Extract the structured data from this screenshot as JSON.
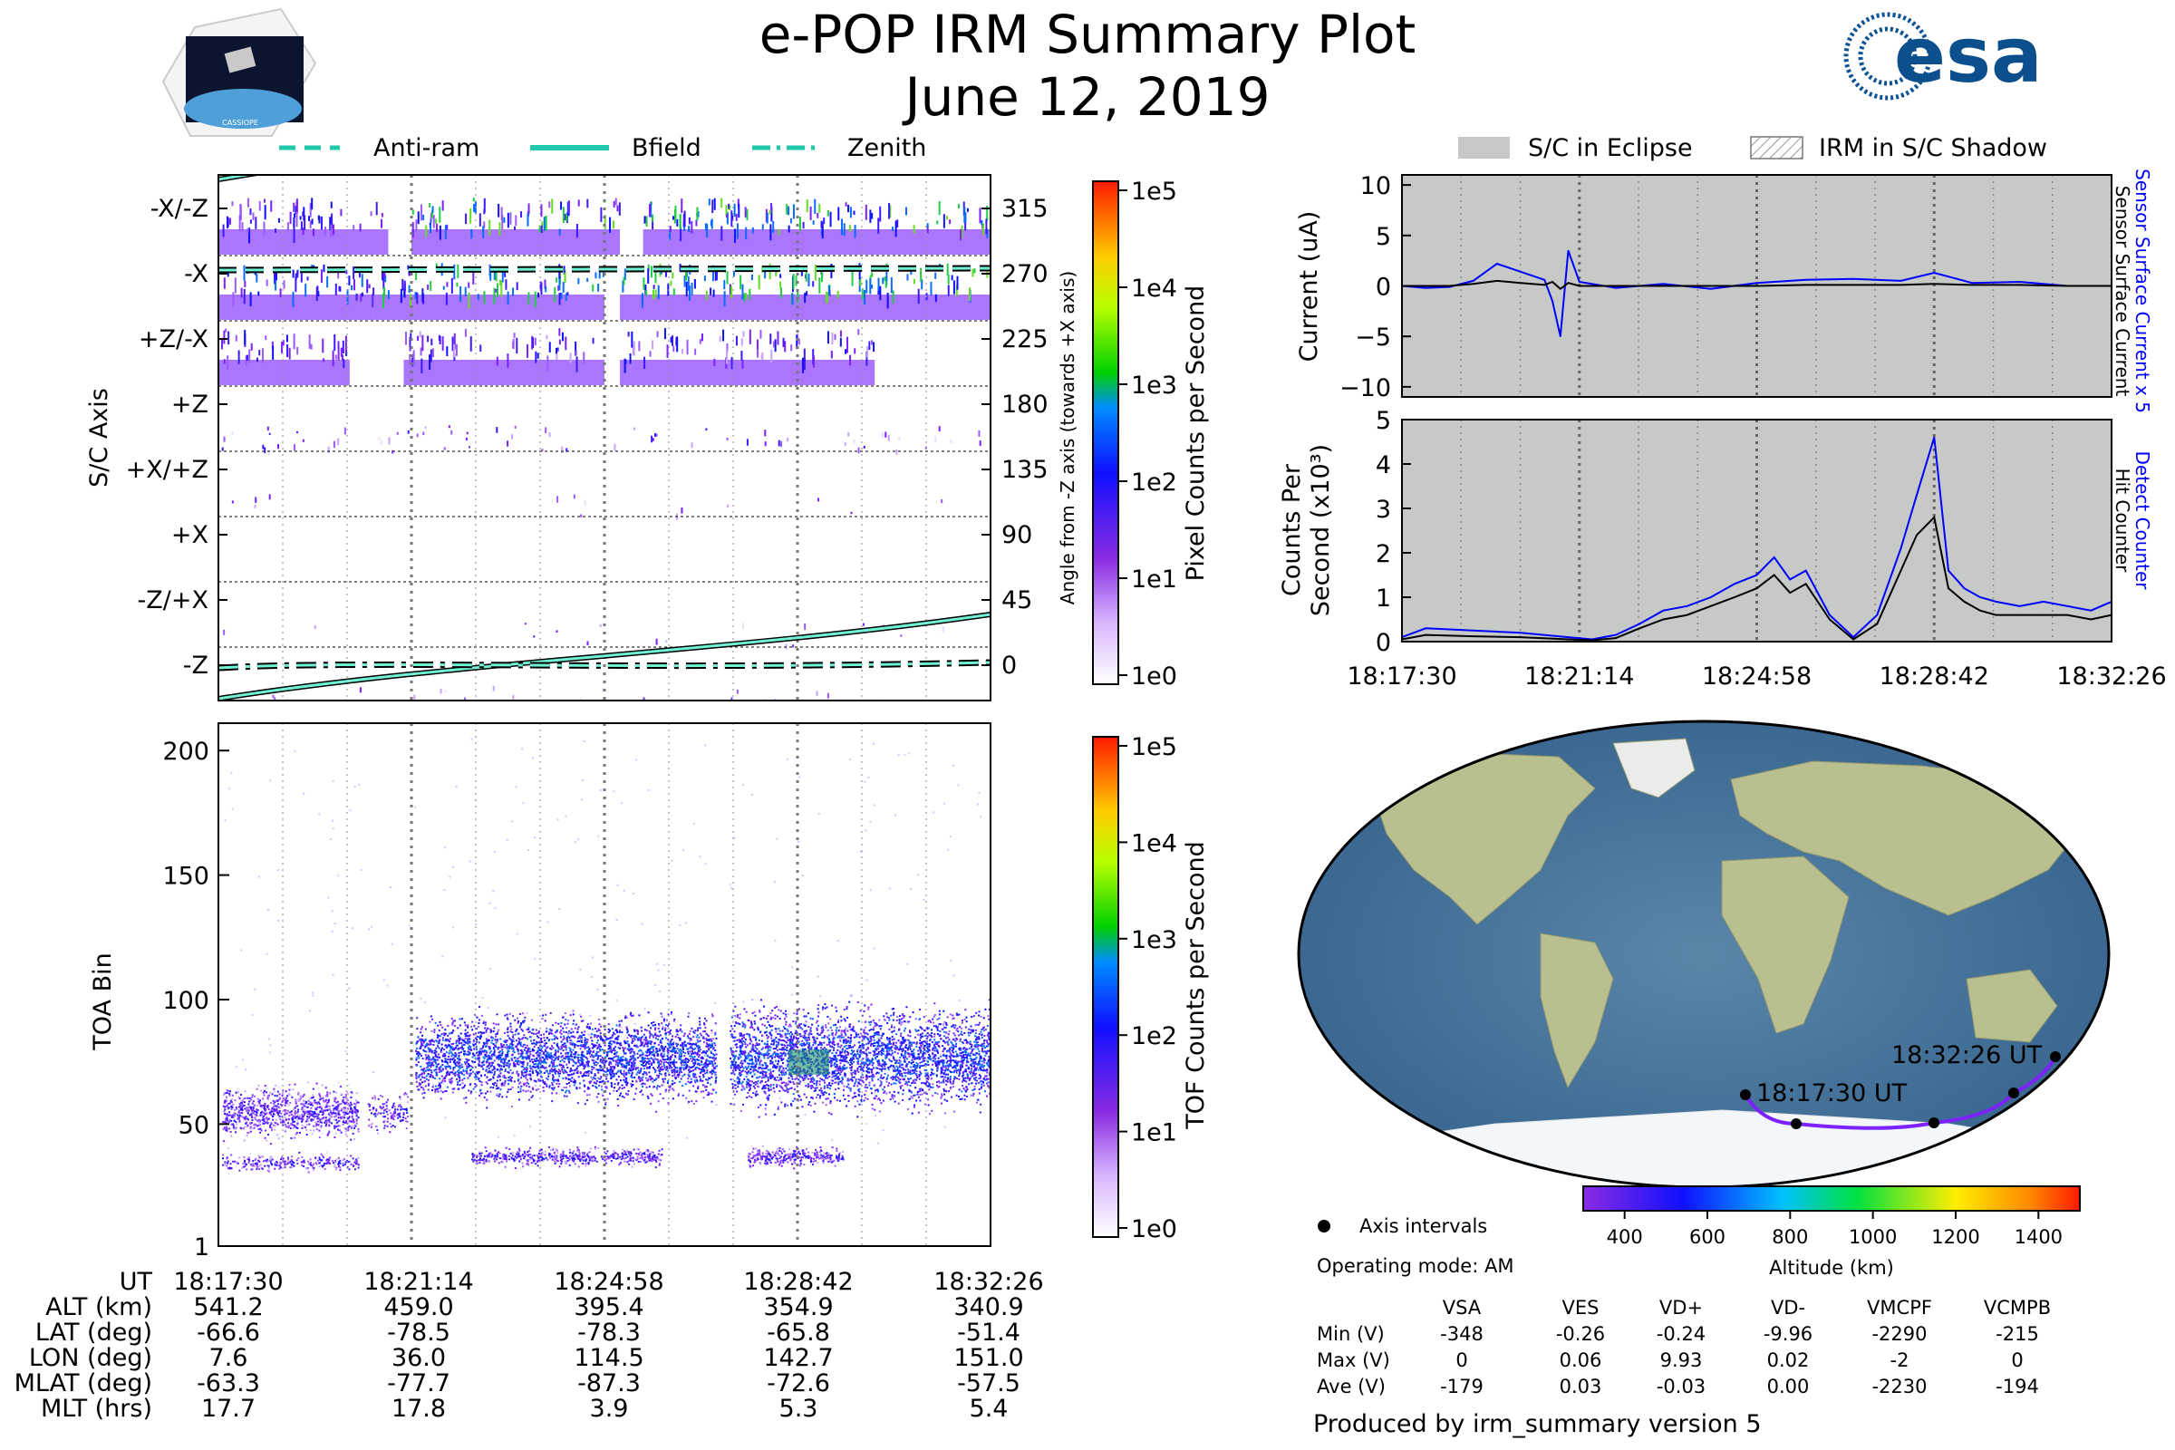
{
  "header": {
    "title": "e-POP IRM Summary Plot",
    "date": "June 12, 2019",
    "mission_logo_text": "CASSIOPE",
    "esa_logo_text": "esa"
  },
  "colors": {
    "bfield": "#1ec8a8",
    "eclipse": "#c7c9c7",
    "detect_counter": "#0000ff",
    "hit_counter": "#000000",
    "orbit_track": "#7b22ff"
  },
  "time_ticks": [
    "18:17:30",
    "18:21:14",
    "18:24:58",
    "18:28:42",
    "18:32:26"
  ],
  "top_left_panel": {
    "legend": [
      "Anti-ram",
      "Bfield",
      "Zenith"
    ],
    "ylabel": "S/C Axis",
    "ylabel_right": "Angle from -Z axis (towards +X axis)",
    "axis_labels": [
      "-X/-Z",
      "-X",
      "+Z/-X",
      "+Z",
      "+X/+Z",
      "+X",
      "-Z/+X",
      "-Z"
    ],
    "angle_labels": [
      "315",
      "270",
      "225",
      "180",
      "135",
      "90",
      "45",
      "0"
    ],
    "colorbar_label": "Pixel Counts per Second",
    "colorbar_ticks": [
      "1e5",
      "1e4",
      "1e3",
      "1e2",
      "1e1",
      "1e0"
    ]
  },
  "bottom_left_panel": {
    "ylabel": "TOA Bin",
    "yticks": [
      "200",
      "150",
      "100",
      "50",
      "1"
    ],
    "colorbar_label": "TOF Counts per Second",
    "colorbar_ticks": [
      "1e5",
      "1e4",
      "1e3",
      "1e2",
      "1e1",
      "1e0"
    ]
  },
  "ephemeris": {
    "rows": [
      {
        "label": "UT",
        "values": [
          "18:17:30",
          "18:21:14",
          "18:24:58",
          "18:28:42",
          "18:32:26"
        ]
      },
      {
        "label": "ALT (km)",
        "values": [
          "541.2",
          "459.0",
          "395.4",
          "354.9",
          "340.9"
        ]
      },
      {
        "label": "LAT (deg)",
        "values": [
          "-66.6",
          "-78.5",
          "-78.3",
          "-65.8",
          "-51.4"
        ]
      },
      {
        "label": "LON (deg)",
        "values": [
          "7.6",
          "36.0",
          "114.5",
          "142.7",
          "151.0"
        ]
      },
      {
        "label": "MLAT (deg)",
        "values": [
          "-63.3",
          "-77.7",
          "-87.3",
          "-72.6",
          "-57.5"
        ]
      },
      {
        "label": "MLT (hrs)",
        "values": [
          "17.7",
          "17.8",
          "3.9",
          "5.3",
          "5.4"
        ]
      }
    ]
  },
  "current_panel": {
    "legend": [
      "S/C in Eclipse",
      "IRM in S/C Shadow"
    ],
    "ylabel": "Current (uA)",
    "yticks": [
      "10",
      "5",
      "0",
      "−5",
      "−10"
    ],
    "right_label_blue": "Sensor Surface Current x 5",
    "right_label_black": "Sensor Surface Current"
  },
  "counts_panel": {
    "ylabel_line1": "Counts Per",
    "ylabel_line2": "Second (x10³)",
    "yticks": [
      "5",
      "4",
      "3",
      "2",
      "1",
      "0"
    ],
    "right_label_blue": "Detect Counter",
    "right_label_black": "Hit Counter"
  },
  "map_panel": {
    "start_label": "18:17:30 UT",
    "end_label": "18:32:26 UT",
    "legend": "Axis intervals",
    "operating_mode": "Operating mode: AM",
    "colorbar_label": "Altitude (km)",
    "colorbar_ticks": [
      "400",
      "600",
      "800",
      "1000",
      "1200",
      "1400"
    ]
  },
  "voltage_table": {
    "columns": [
      "VSA",
      "VES",
      "VD+",
      "VD-",
      "VMCPF",
      "VCMPB"
    ],
    "rows": [
      {
        "label": "Min (V)",
        "values": [
          "-348",
          "-0.26",
          "-0.24",
          "-9.96",
          "-2290",
          "-215"
        ]
      },
      {
        "label": "Max (V)",
        "values": [
          "0",
          "0.06",
          "9.93",
          "0.02",
          "-2",
          "0"
        ]
      },
      {
        "label": "Ave (V)",
        "values": [
          "-179",
          "0.03",
          "-0.03",
          "0.00",
          "-2230",
          "-194"
        ]
      }
    ]
  },
  "footer": "Produced by irm_summary version 5",
  "chart_data": [
    {
      "type": "line",
      "title": "",
      "ylabel": "Current (uA)",
      "ylim": [
        -11,
        11
      ],
      "x": [
        "18:17:30",
        "18:18:00",
        "18:18:30",
        "18:19:00",
        "18:19:30",
        "18:20:00",
        "18:20:30",
        "18:20:40",
        "18:20:50",
        "18:21:00",
        "18:21:14",
        "18:22:00",
        "18:23:00",
        "18:24:00",
        "18:24:58",
        "18:26:00",
        "18:27:00",
        "18:28:00",
        "18:28:42",
        "18:29:30",
        "18:30:30",
        "18:31:30",
        "18:32:26"
      ],
      "series": [
        {
          "name": "Sensor Surface Current x 5",
          "values": [
            0,
            -0.2,
            -0.1,
            0.5,
            2.2,
            1.4,
            0.6,
            -1.5,
            -5.0,
            3.5,
            0.4,
            -0.2,
            0.2,
            -0.3,
            0.3,
            0.6,
            0.7,
            0.5,
            1.3,
            0.3,
            0.4,
            0.0,
            0.0
          ]
        },
        {
          "name": "Sensor Surface Current",
          "values": [
            0,
            0,
            0,
            0.2,
            0.5,
            0.3,
            0.1,
            0.4,
            -0.3,
            0.3,
            0.0,
            0.0,
            0.0,
            0.0,
            0.0,
            0.1,
            0.1,
            0.1,
            0.2,
            0.1,
            0.1,
            0.0,
            0.0
          ]
        }
      ]
    },
    {
      "type": "line",
      "title": "",
      "ylabel": "Counts Per Second (x10³)",
      "ylim": [
        0,
        5
      ],
      "x": [
        "18:17:30",
        "18:18:00",
        "18:19:00",
        "18:20:00",
        "18:21:00",
        "18:21:30",
        "18:22:00",
        "18:22:30",
        "18:23:00",
        "18:23:30",
        "18:24:00",
        "18:24:30",
        "18:24:58",
        "18:25:20",
        "18:25:40",
        "18:26:00",
        "18:26:30",
        "18:27:00",
        "18:27:30",
        "18:28:00",
        "18:28:20",
        "18:28:42",
        "18:29:00",
        "18:29:20",
        "18:29:40",
        "18:30:00",
        "18:30:30",
        "18:31:00",
        "18:31:30",
        "18:32:00",
        "18:32:26"
      ],
      "series": [
        {
          "name": "Detect Counter",
          "values": [
            0.1,
            0.3,
            0.25,
            0.2,
            0.1,
            0.05,
            0.15,
            0.4,
            0.7,
            0.8,
            1.0,
            1.3,
            1.5,
            1.9,
            1.4,
            1.6,
            0.6,
            0.1,
            0.6,
            2.1,
            3.3,
            4.6,
            1.6,
            1.2,
            1.0,
            0.9,
            0.8,
            0.9,
            0.8,
            0.7,
            0.9
          ]
        },
        {
          "name": "Hit Counter",
          "values": [
            0.05,
            0.15,
            0.12,
            0.1,
            0.05,
            0.03,
            0.08,
            0.3,
            0.5,
            0.6,
            0.8,
            1.0,
            1.2,
            1.5,
            1.1,
            1.3,
            0.5,
            0.05,
            0.4,
            1.6,
            2.4,
            2.8,
            1.2,
            0.9,
            0.7,
            0.6,
            0.6,
            0.6,
            0.6,
            0.5,
            0.6
          ]
        }
      ]
    },
    {
      "type": "heatmap",
      "title": "",
      "ylabel": "S/C Axis",
      "ylim": [
        0,
        360
      ],
      "colorbar": "Pixel Counts per Second",
      "x": [
        "18:17:30",
        "18:21:14",
        "18:24:58",
        "18:28:42",
        "18:32:26"
      ]
    },
    {
      "type": "heatmap",
      "title": "",
      "ylabel": "TOA Bin",
      "ylim": [
        1,
        210
      ],
      "colorbar": "TOF Counts per Second",
      "x": [
        "18:17:30",
        "18:21:14",
        "18:24:58",
        "18:28:42",
        "18:32:26"
      ]
    }
  ]
}
